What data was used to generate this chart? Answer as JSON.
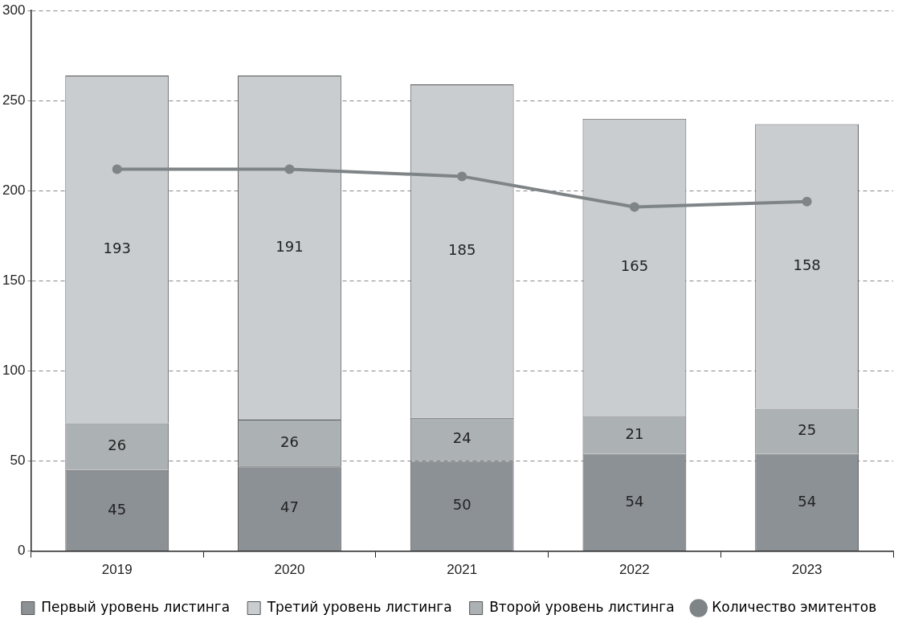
{
  "chart_data": {
    "type": "bar",
    "stacked": true,
    "categories": [
      "2019",
      "2020",
      "2021",
      "2022",
      "2023"
    ],
    "series": [
      {
        "name": "Первый уровень листинга",
        "color": "#8c9196",
        "values": [
          45,
          47,
          50,
          54,
          54
        ],
        "value_labels": [
          "45",
          "47",
          "50",
          "54",
          "54"
        ]
      },
      {
        "name": "Второй уровень листинга",
        "color": "#acb1b4",
        "values": [
          26,
          26,
          24,
          21,
          25
        ],
        "value_labels": [
          "26",
          "26",
          "24",
          "21",
          "25"
        ]
      },
      {
        "name": "Третий уровень листинга",
        "color": "#c9cdd0",
        "values": [
          193,
          191,
          185,
          165,
          158
        ],
        "value_labels": [
          "193",
          "191",
          "185",
          "165",
          "158"
        ]
      },
      {
        "name": "Количество эмитентов",
        "type": "line",
        "color": "#7f8487",
        "values": [
          212,
          212,
          208,
          191,
          194
        ],
        "marker": "circle"
      }
    ],
    "ylim": [
      0,
      300
    ],
    "yticks": [
      0,
      50,
      100,
      150,
      200,
      250,
      300
    ],
    "grid": "y",
    "legend": "bottom"
  }
}
